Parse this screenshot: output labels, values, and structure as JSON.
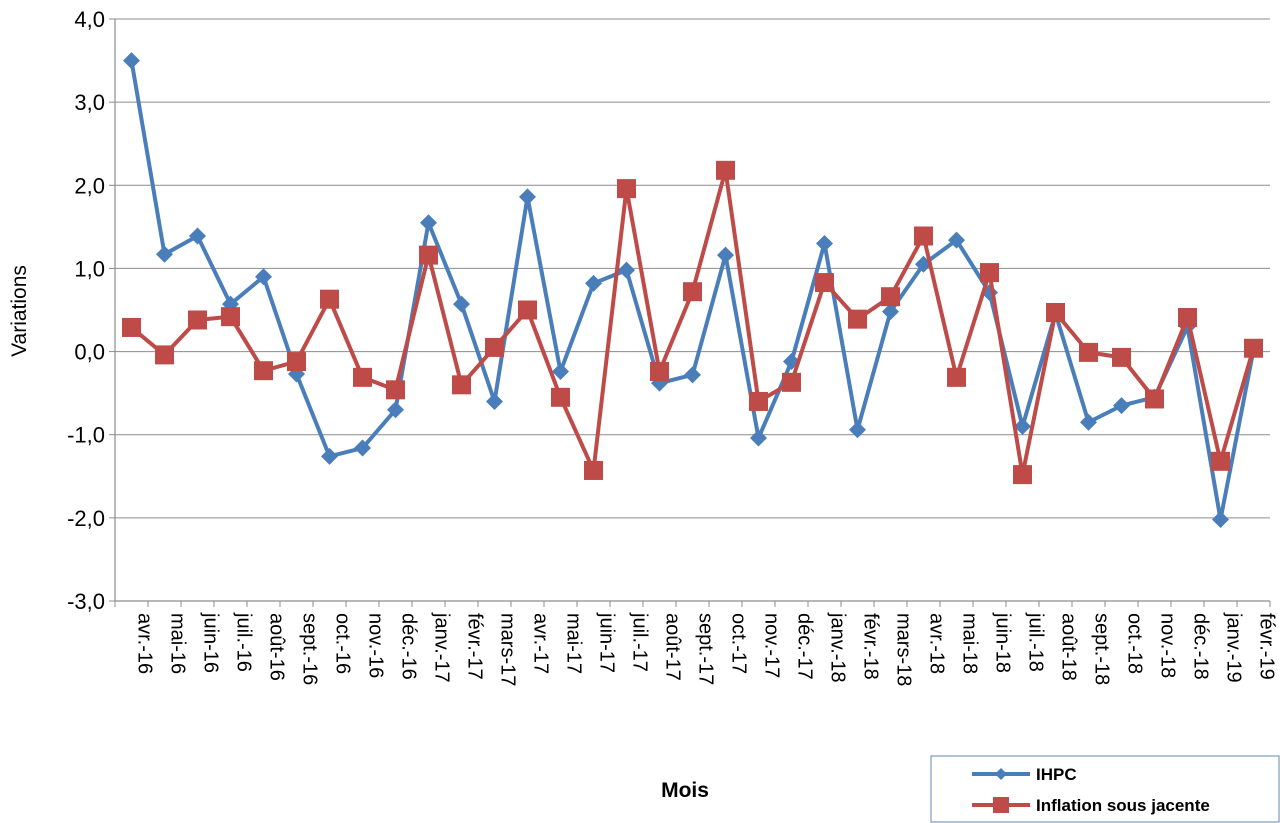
{
  "chart_data": {
    "type": "line",
    "title": "",
    "xlabel": "Mois",
    "ylabel": "Variations",
    "ylim": [
      -3,
      4
    ],
    "y_ticks": [
      "4,0",
      "3,0",
      "2,0",
      "1,0",
      "0,0",
      "-1,0",
      "-2,0",
      "-3,0"
    ],
    "grid": true,
    "legend_position": "bottom-right",
    "categories": [
      "avr.-16",
      "mai-16",
      "juin-16",
      "juil.-16",
      "août-16",
      "sept.-16",
      "oct.-16",
      "nov.-16",
      "déc.-16",
      "janv.-17",
      "févr.-17",
      "mars-17",
      "avr.-17",
      "mai-17",
      "juin-17",
      "juil.-17",
      "août-17",
      "sept.-17",
      "oct.-17",
      "nov.-17",
      "déc.-17",
      "janv.-18",
      "févr.-18",
      "mars-18",
      "avr.-18",
      "mai-18",
      "juin-18",
      "juil.-18",
      "août-18",
      "sept.-18",
      "oct.-18",
      "nov.-18",
      "déc.-18",
      "janv.-19",
      "févr.-19"
    ],
    "series": [
      {
        "name": "IHPC",
        "color": "#4a7ebb",
        "marker": "diamond",
        "values": [
          3.5,
          1.17,
          1.39,
          0.57,
          0.9,
          -0.27,
          -1.26,
          -1.16,
          -0.7,
          1.55,
          0.57,
          -0.6,
          1.86,
          -0.24,
          0.82,
          0.98,
          -0.38,
          -0.28,
          1.16,
          -1.04,
          -0.12,
          1.3,
          -0.94,
          0.48,
          1.05,
          1.34,
          0.71,
          -0.9,
          0.46,
          -0.85,
          -0.65,
          -0.55,
          0.3,
          -2.02,
          0.02
        ]
      },
      {
        "name": "Inflation sous jacente",
        "color": "#be4b48",
        "marker": "square",
        "values": [
          0.29,
          -0.04,
          0.38,
          0.42,
          -0.23,
          -0.12,
          0.63,
          -0.31,
          -0.46,
          1.16,
          -0.4,
          0.05,
          0.5,
          -0.55,
          -1.43,
          1.96,
          -0.24,
          0.72,
          2.18,
          -0.6,
          -0.37,
          0.83,
          0.39,
          0.66,
          1.39,
          -0.31,
          0.95,
          -1.48,
          0.47,
          -0.01,
          -0.07,
          -0.57,
          0.41,
          -1.32,
          0.04
        ]
      }
    ]
  }
}
